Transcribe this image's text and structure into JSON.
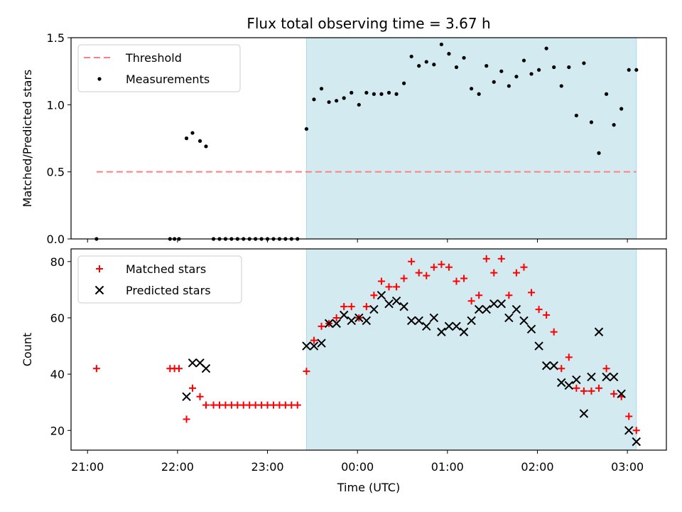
{
  "chart_data": [
    {
      "type": "scatter",
      "title": "Flux total observing time = 3.67 h",
      "ylabel": "Matched/Predicted stars",
      "xlabel": "",
      "ylim": [
        0,
        1.5
      ],
      "yticks": [
        "0.0",
        "0.5",
        "1.0",
        "1.5"
      ],
      "xlim": [
        "20:49",
        "03:26"
      ],
      "xticks": [
        "21:00",
        "22:00",
        "23:00",
        "00:00",
        "01:00",
        "02:00",
        "03:00"
      ],
      "show_xtick_labels": false,
      "legend": "top-left",
      "shaded_region": {
        "from": "23:26",
        "to": "03:06",
        "color": "#d3eaf0"
      },
      "series": [
        {
          "name": "Threshold",
          "kind": "line",
          "style": "dashed",
          "color": "#ff7f7f",
          "points": [
            [
              "21:06",
              0.5
            ],
            [
              "03:06",
              0.5
            ]
          ]
        },
        {
          "name": "Measurements",
          "kind": "scatter",
          "marker": "dot",
          "color": "#000000",
          "points": [
            [
              "21:06",
              0
            ],
            [
              "21:55",
              0
            ],
            [
              "21:58",
              0
            ],
            [
              "22:01",
              0
            ],
            [
              "22:06",
              0.75
            ],
            [
              "22:10",
              0.79
            ],
            [
              "22:15",
              0.73
            ],
            [
              "22:19",
              0.69
            ],
            [
              "22:24",
              0
            ],
            [
              "22:28",
              0
            ],
            [
              "22:32",
              0
            ],
            [
              "22:36",
              0
            ],
            [
              "22:40",
              0
            ],
            [
              "22:44",
              0
            ],
            [
              "22:48",
              0
            ],
            [
              "22:52",
              0
            ],
            [
              "22:56",
              0
            ],
            [
              "23:00",
              0
            ],
            [
              "23:04",
              0
            ],
            [
              "23:08",
              0
            ],
            [
              "23:12",
              0
            ],
            [
              "23:16",
              0
            ],
            [
              "23:20",
              0
            ],
            [
              "23:26",
              0.82
            ],
            [
              "23:31",
              1.04
            ],
            [
              "23:36",
              1.12
            ],
            [
              "23:41",
              1.02
            ],
            [
              "23:46",
              1.03
            ],
            [
              "23:51",
              1.05
            ],
            [
              "23:56",
              1.09
            ],
            [
              "00:01",
              1.0
            ],
            [
              "00:06",
              1.09
            ],
            [
              "00:11",
              1.08
            ],
            [
              "00:16",
              1.08
            ],
            [
              "00:21",
              1.09
            ],
            [
              "00:26",
              1.08
            ],
            [
              "00:31",
              1.16
            ],
            [
              "00:36",
              1.36
            ],
            [
              "00:41",
              1.29
            ],
            [
              "00:46",
              1.32
            ],
            [
              "00:51",
              1.3
            ],
            [
              "00:56",
              1.45
            ],
            [
              "01:01",
              1.38
            ],
            [
              "01:06",
              1.28
            ],
            [
              "01:11",
              1.35
            ],
            [
              "01:16",
              1.12
            ],
            [
              "01:21",
              1.08
            ],
            [
              "01:26",
              1.29
            ],
            [
              "01:31",
              1.17
            ],
            [
              "01:36",
              1.25
            ],
            [
              "01:41",
              1.14
            ],
            [
              "01:46",
              1.21
            ],
            [
              "01:51",
              1.33
            ],
            [
              "01:56",
              1.23
            ],
            [
              "02:01",
              1.26
            ],
            [
              "02:06",
              1.42
            ],
            [
              "02:11",
              1.28
            ],
            [
              "02:16",
              1.14
            ],
            [
              "02:21",
              1.28
            ],
            [
              "02:26",
              0.92
            ],
            [
              "02:31",
              1.31
            ],
            [
              "02:36",
              0.87
            ],
            [
              "02:41",
              0.64
            ],
            [
              "02:46",
              1.08
            ],
            [
              "02:51",
              0.85
            ],
            [
              "02:56",
              0.97
            ],
            [
              "03:01",
              1.26
            ],
            [
              "03:06",
              1.26
            ]
          ]
        }
      ]
    },
    {
      "type": "scatter",
      "title": "",
      "ylabel": "Count",
      "xlabel": "Time (UTC)",
      "ylim": [
        13,
        84.5
      ],
      "yticks": [
        "20",
        "40",
        "60",
        "80"
      ],
      "xlim": [
        "20:49",
        "03:26"
      ],
      "xticks": [
        "21:00",
        "22:00",
        "23:00",
        "00:00",
        "01:00",
        "02:00",
        "03:00"
      ],
      "show_xtick_labels": true,
      "legend": "top-left",
      "shaded_region": {
        "from": "23:26",
        "to": "03:06",
        "color": "#d3eaf0"
      },
      "series": [
        {
          "name": "Matched stars",
          "kind": "scatter",
          "marker": "plus",
          "color": "#ff0000",
          "points": [
            [
              "21:06",
              42
            ],
            [
              "21:55",
              42
            ],
            [
              "21:58",
              42
            ],
            [
              "22:01",
              42
            ],
            [
              "22:06",
              24
            ],
            [
              "22:10",
              35
            ],
            [
              "22:15",
              32
            ],
            [
              "22:19",
              29
            ],
            [
              "22:24",
              29
            ],
            [
              "22:28",
              29
            ],
            [
              "22:32",
              29
            ],
            [
              "22:36",
              29
            ],
            [
              "22:40",
              29
            ],
            [
              "22:44",
              29
            ],
            [
              "22:48",
              29
            ],
            [
              "22:52",
              29
            ],
            [
              "22:56",
              29
            ],
            [
              "23:00",
              29
            ],
            [
              "23:04",
              29
            ],
            [
              "23:08",
              29
            ],
            [
              "23:12",
              29
            ],
            [
              "23:16",
              29
            ],
            [
              "23:20",
              29
            ],
            [
              "23:26",
              41
            ],
            [
              "23:31",
              52
            ],
            [
              "23:36",
              57
            ],
            [
              "23:41",
              58
            ],
            [
              "23:46",
              60
            ],
            [
              "23:51",
              64
            ],
            [
              "23:56",
              64
            ],
            [
              "00:01",
              60
            ],
            [
              "00:06",
              64
            ],
            [
              "00:11",
              68
            ],
            [
              "00:16",
              73
            ],
            [
              "00:21",
              71
            ],
            [
              "00:26",
              71
            ],
            [
              "00:31",
              74
            ],
            [
              "00:36",
              80
            ],
            [
              "00:41",
              76
            ],
            [
              "00:46",
              75
            ],
            [
              "00:51",
              78
            ],
            [
              "00:56",
              79
            ],
            [
              "01:01",
              78
            ],
            [
              "01:06",
              73
            ],
            [
              "01:11",
              74
            ],
            [
              "01:16",
              66
            ],
            [
              "01:21",
              68
            ],
            [
              "01:26",
              81
            ],
            [
              "01:31",
              76
            ],
            [
              "01:36",
              81
            ],
            [
              "01:41",
              68
            ],
            [
              "01:46",
              76
            ],
            [
              "01:51",
              78
            ],
            [
              "01:56",
              69
            ],
            [
              "02:01",
              63
            ],
            [
              "02:06",
              61
            ],
            [
              "02:11",
              55
            ],
            [
              "02:16",
              42
            ],
            [
              "02:21",
              46
            ],
            [
              "02:26",
              35
            ],
            [
              "02:31",
              34
            ],
            [
              "02:36",
              34
            ],
            [
              "02:41",
              35
            ],
            [
              "02:46",
              42
            ],
            [
              "02:51",
              33
            ],
            [
              "02:56",
              32
            ],
            [
              "03:01",
              25
            ],
            [
              "03:06",
              20
            ]
          ]
        },
        {
          "name": "Predicted stars",
          "kind": "scatter",
          "marker": "x",
          "color": "#000000",
          "points": [
            [
              "22:06",
              32
            ],
            [
              "22:10",
              44
            ],
            [
              "22:15",
              44
            ],
            [
              "22:19",
              42
            ],
            [
              "23:26",
              50
            ],
            [
              "23:31",
              50
            ],
            [
              "23:36",
              51
            ],
            [
              "23:41",
              58
            ],
            [
              "23:46",
              58
            ],
            [
              "23:51",
              61
            ],
            [
              "23:56",
              59
            ],
            [
              "00:01",
              60
            ],
            [
              "00:06",
              59
            ],
            [
              "00:11",
              63
            ],
            [
              "00:16",
              68
            ],
            [
              "00:21",
              65
            ],
            [
              "00:26",
              66
            ],
            [
              "00:31",
              64
            ],
            [
              "00:36",
              59
            ],
            [
              "00:41",
              59
            ],
            [
              "00:46",
              57
            ],
            [
              "00:51",
              60
            ],
            [
              "00:56",
              55
            ],
            [
              "01:01",
              57
            ],
            [
              "01:06",
              57
            ],
            [
              "01:11",
              55
            ],
            [
              "01:16",
              59
            ],
            [
              "01:21",
              63
            ],
            [
              "01:26",
              63
            ],
            [
              "01:31",
              65
            ],
            [
              "01:36",
              65
            ],
            [
              "01:41",
              60
            ],
            [
              "01:46",
              63
            ],
            [
              "01:51",
              59
            ],
            [
              "01:56",
              56
            ],
            [
              "02:01",
              50
            ],
            [
              "02:06",
              43
            ],
            [
              "02:11",
              43
            ],
            [
              "02:16",
              37
            ],
            [
              "02:21",
              36
            ],
            [
              "02:26",
              38
            ],
            [
              "02:31",
              26
            ],
            [
              "02:36",
              39
            ],
            [
              "02:41",
              55
            ],
            [
              "02:46",
              39
            ],
            [
              "02:51",
              39
            ],
            [
              "02:56",
              33
            ],
            [
              "03:01",
              20
            ],
            [
              "03:06",
              16
            ]
          ]
        }
      ]
    }
  ]
}
